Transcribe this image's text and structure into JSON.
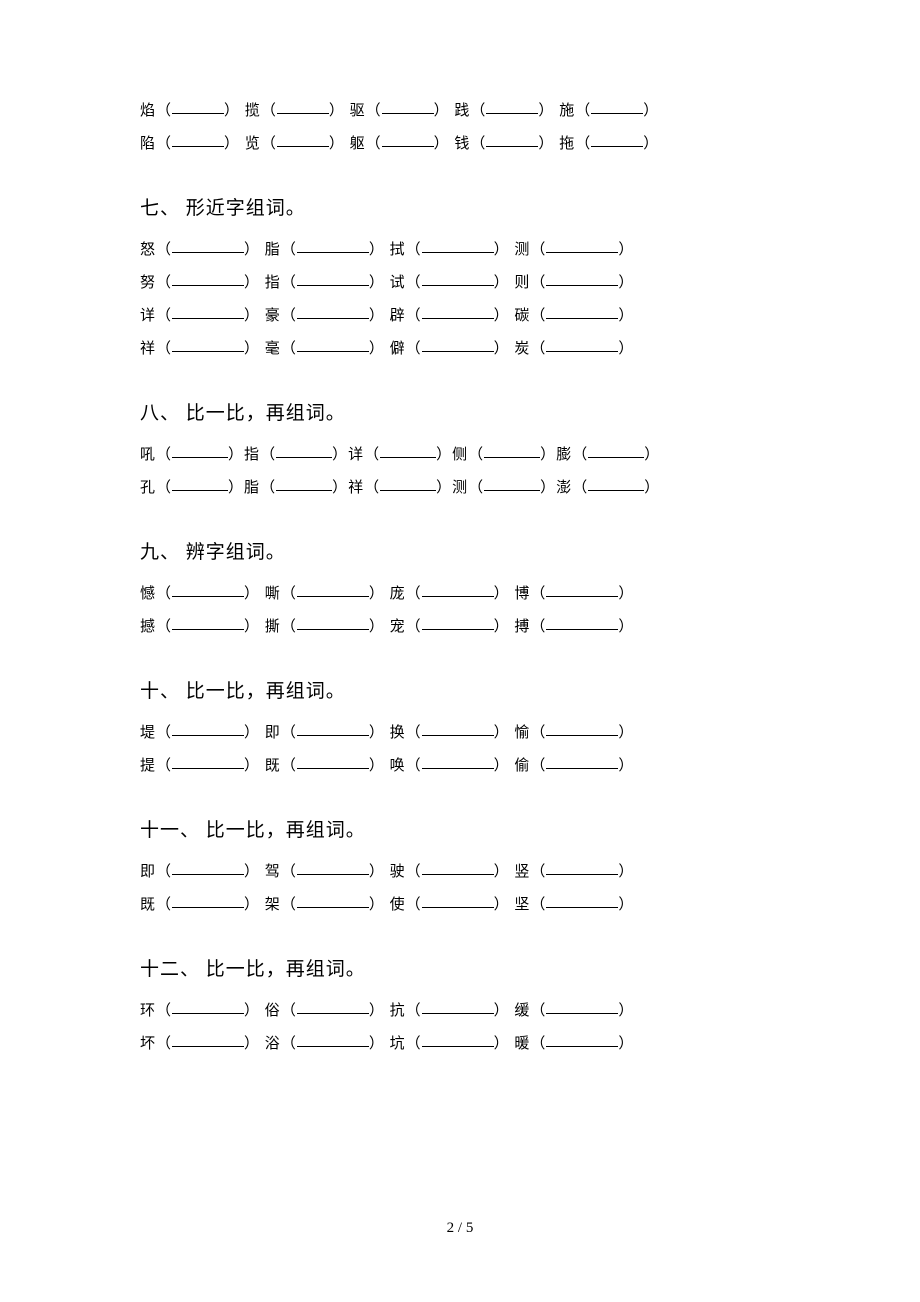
{
  "page_number": "2 / 5",
  "blank_widths": {
    "short": 52,
    "medium": 72,
    "long": 56
  },
  "top_rows": {
    "rows": [
      [
        "焰",
        "揽",
        "驱",
        "践",
        "施"
      ],
      [
        "陷",
        "览",
        "躯",
        "钱",
        "拖"
      ]
    ],
    "blank_width": 52,
    "gap": "  "
  },
  "sections": [
    {
      "title": "七、 形近字组词。",
      "rows": [
        [
          "怒",
          "脂",
          "拭",
          "测"
        ],
        [
          "努",
          "指",
          "试",
          "则"
        ],
        [
          "详",
          "豪",
          "辟",
          "碳"
        ],
        [
          "祥",
          "毫",
          "僻",
          "炭"
        ]
      ],
      "blank_width": 72,
      "gap": "  "
    },
    {
      "title": "八、 比一比，再组词。",
      "rows": [
        [
          "吼",
          "指",
          "详",
          "侧",
          "膨"
        ],
        [
          "孔",
          "脂",
          "祥",
          "测",
          "澎"
        ]
      ],
      "blank_width": 56,
      "gap": ""
    },
    {
      "title": "九、 辨字组词。",
      "rows": [
        [
          "憾",
          "嘶",
          "庞",
          "博"
        ],
        [
          "撼",
          "撕",
          "宠",
          "搏"
        ]
      ],
      "blank_width": 72,
      "gap": "  "
    },
    {
      "title": "十、 比一比，再组词。",
      "rows": [
        [
          "堤",
          "即",
          "换",
          "愉"
        ],
        [
          "提",
          "既",
          "唤",
          "偷"
        ]
      ],
      "blank_width": 72,
      "gap": "  "
    },
    {
      "title": "十一、 比一比，再组词。",
      "rows": [
        [
          "即",
          "驾",
          "驶",
          "竖"
        ],
        [
          "既",
          "架",
          "使",
          "坚"
        ]
      ],
      "blank_width": 72,
      "gap": "  "
    },
    {
      "title": "十二、 比一比，再组词。",
      "rows": [
        [
          "环",
          "俗",
          "抗",
          "缓"
        ],
        [
          "坏",
          "浴",
          "坑",
          "暖"
        ]
      ],
      "blank_width": 72,
      "gap": "  "
    }
  ]
}
